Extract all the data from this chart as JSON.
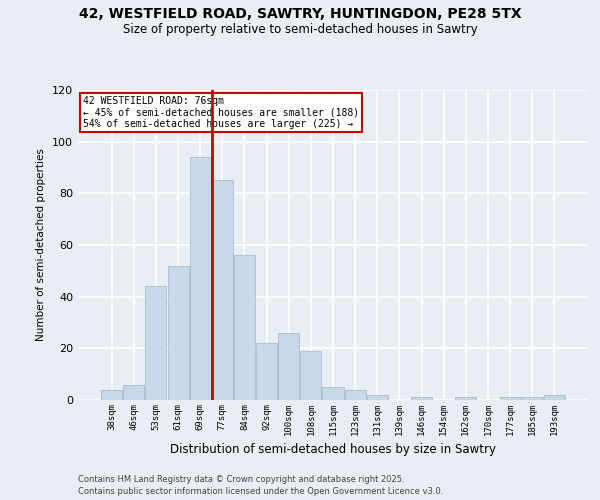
{
  "title": "42, WESTFIELD ROAD, SAWTRY, HUNTINGDON, PE28 5TX",
  "subtitle": "Size of property relative to semi-detached houses in Sawtry",
  "xlabel": "Distribution of semi-detached houses by size in Sawtry",
  "ylabel": "Number of semi-detached properties",
  "annotation_title": "42 WESTFIELD ROAD: 76sqm",
  "annotation_line1": "← 45% of semi-detached houses are smaller (188)",
  "annotation_line2": "54% of semi-detached houses are larger (225) →",
  "footer_line1": "Contains HM Land Registry data © Crown copyright and database right 2025.",
  "footer_line2": "Contains public sector information licensed under the Open Government Licence v3.0.",
  "property_size": 76,
  "vline_color": "#cc0000",
  "annotation_box_color": "#cc0000",
  "bar_color": "#c8d8e8",
  "bar_edge_color": "#9ab8cc",
  "background_color": "#e8eef4",
  "grid_color": "#ffffff",
  "categories": [
    "38sqm",
    "46sqm",
    "53sqm",
    "61sqm",
    "69sqm",
    "77sqm",
    "84sqm",
    "92sqm",
    "100sqm",
    "108sqm",
    "115sqm",
    "123sqm",
    "131sqm",
    "139sqm",
    "146sqm",
    "154sqm",
    "162sqm",
    "170sqm",
    "177sqm",
    "185sqm",
    "193sqm"
  ],
  "values": [
    4,
    6,
    44,
    52,
    94,
    85,
    56,
    22,
    26,
    19,
    5,
    4,
    2,
    0,
    1,
    0,
    1,
    0,
    1,
    1,
    2
  ],
  "ylim": [
    0,
    120
  ],
  "yticks": [
    0,
    20,
    40,
    60,
    80,
    100,
    120
  ],
  "vline_index": 5
}
